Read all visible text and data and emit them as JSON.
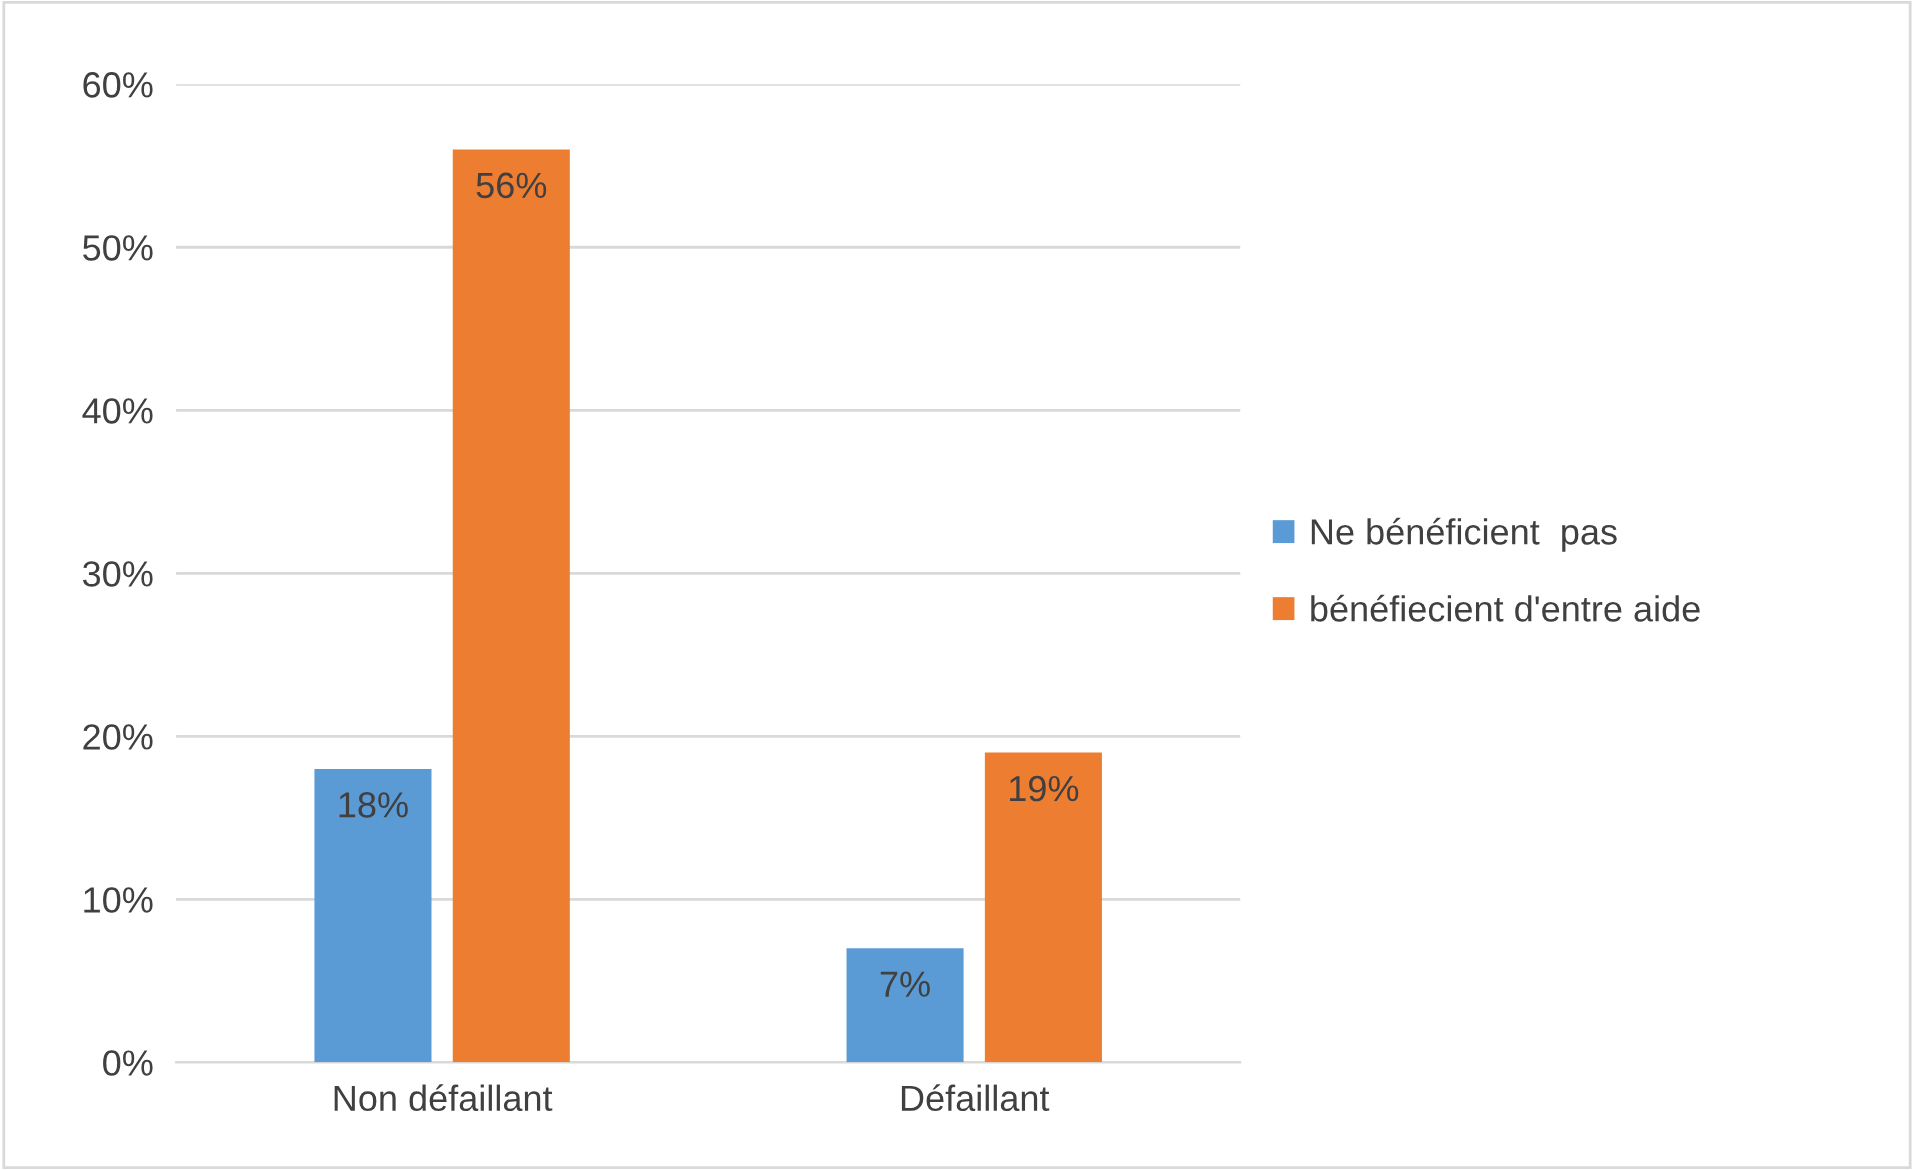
{
  "chart_data": {
    "type": "bar",
    "categories": [
      "Non défaillant",
      "Défaillant"
    ],
    "series": [
      {
        "name": "Ne bénéficient  pas",
        "color": "#5b9bd5",
        "values": [
          18,
          7
        ],
        "value_labels": [
          "18%",
          "7%"
        ]
      },
      {
        "name": "bénéfiecient d'entre aide",
        "color": "#ed7d31",
        "values": [
          56,
          19
        ],
        "value_labels": [
          "56%",
          "19%"
        ]
      }
    ],
    "ylim": [
      0,
      60
    ],
    "yticks": [
      {
        "value": 0,
        "label": "0%"
      },
      {
        "value": 10,
        "label": "10%"
      },
      {
        "value": 20,
        "label": "20%"
      },
      {
        "value": 30,
        "label": "30%"
      },
      {
        "value": 40,
        "label": "40%"
      },
      {
        "value": 50,
        "label": "50%"
      },
      {
        "value": 60,
        "label": "60%"
      }
    ],
    "grid": "y",
    "legend": "right"
  }
}
